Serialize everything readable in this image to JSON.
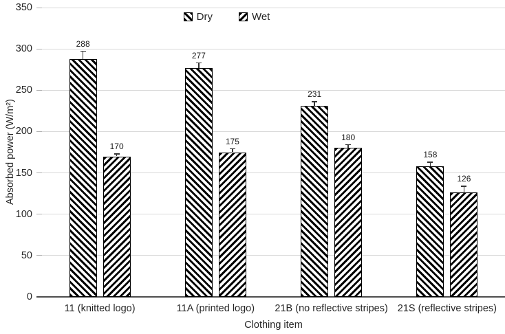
{
  "chart_data": {
    "type": "bar",
    "title": "",
    "categories": [
      "11 (knitted logo)",
      "11A (printed logo)",
      "21B (no reflective stripes)",
      "21S (reflective stripes)"
    ],
    "series": [
      {
        "name": "Dry",
        "hatch": "backslash",
        "values": [
          288,
          277,
          231,
          158
        ],
        "errors": [
          9,
          6,
          5,
          5
        ]
      },
      {
        "name": "Wet",
        "hatch": "slash",
        "values": [
          170,
          175,
          180,
          126
        ],
        "errors": [
          3,
          4,
          4,
          8
        ]
      }
    ],
    "data_labels": [
      [
        "288",
        "277",
        "231",
        "158"
      ],
      [
        "170",
        "175",
        "180",
        "126"
      ]
    ],
    "xlabel": "Clothing item",
    "ylabel": "Absorbed power (W/m²)",
    "ylim": [
      0,
      350
    ],
    "ytick_step": 50,
    "yticks": [
      "0",
      "50",
      "100",
      "150",
      "200",
      "250",
      "300",
      "350"
    ],
    "grid": true,
    "error_bars": true,
    "legend_position": "top-center"
  },
  "colors": {
    "background": "#ffffff",
    "bar_fill": "#ffffff",
    "hatch": "#000000",
    "bar_border": "#000000",
    "gridline": "#d9d9d9",
    "axis_line": "#4d4d4d",
    "tick": "#b0b0b0",
    "error_bar": "#333333",
    "text": "#262626"
  }
}
